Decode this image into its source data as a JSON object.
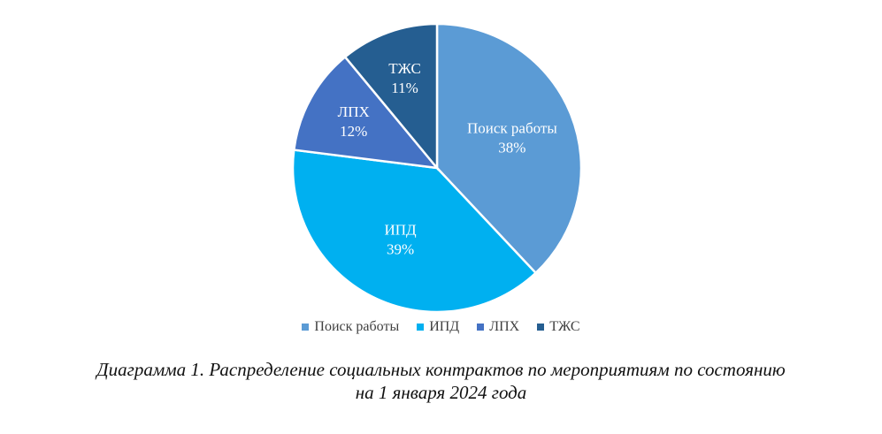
{
  "chart_data": {
    "type": "pie",
    "categories": [
      "Поиск работы",
      "ИПД",
      "ЛПХ",
      "ТЖС"
    ],
    "values": [
      38,
      39,
      12,
      11
    ],
    "value_labels": [
      "38%",
      "39%",
      "12%",
      "11%"
    ],
    "colors": [
      "#5B9BD5",
      "#00B0F0",
      "#4472C4",
      "#255E91"
    ],
    "legend_placement": "bottom",
    "title": ""
  },
  "caption": {
    "line1": "Диаграмма 1. Распределение социальных контрактов по мероприятиям по состоянию",
    "line2": "на 1 января 2024 года"
  }
}
